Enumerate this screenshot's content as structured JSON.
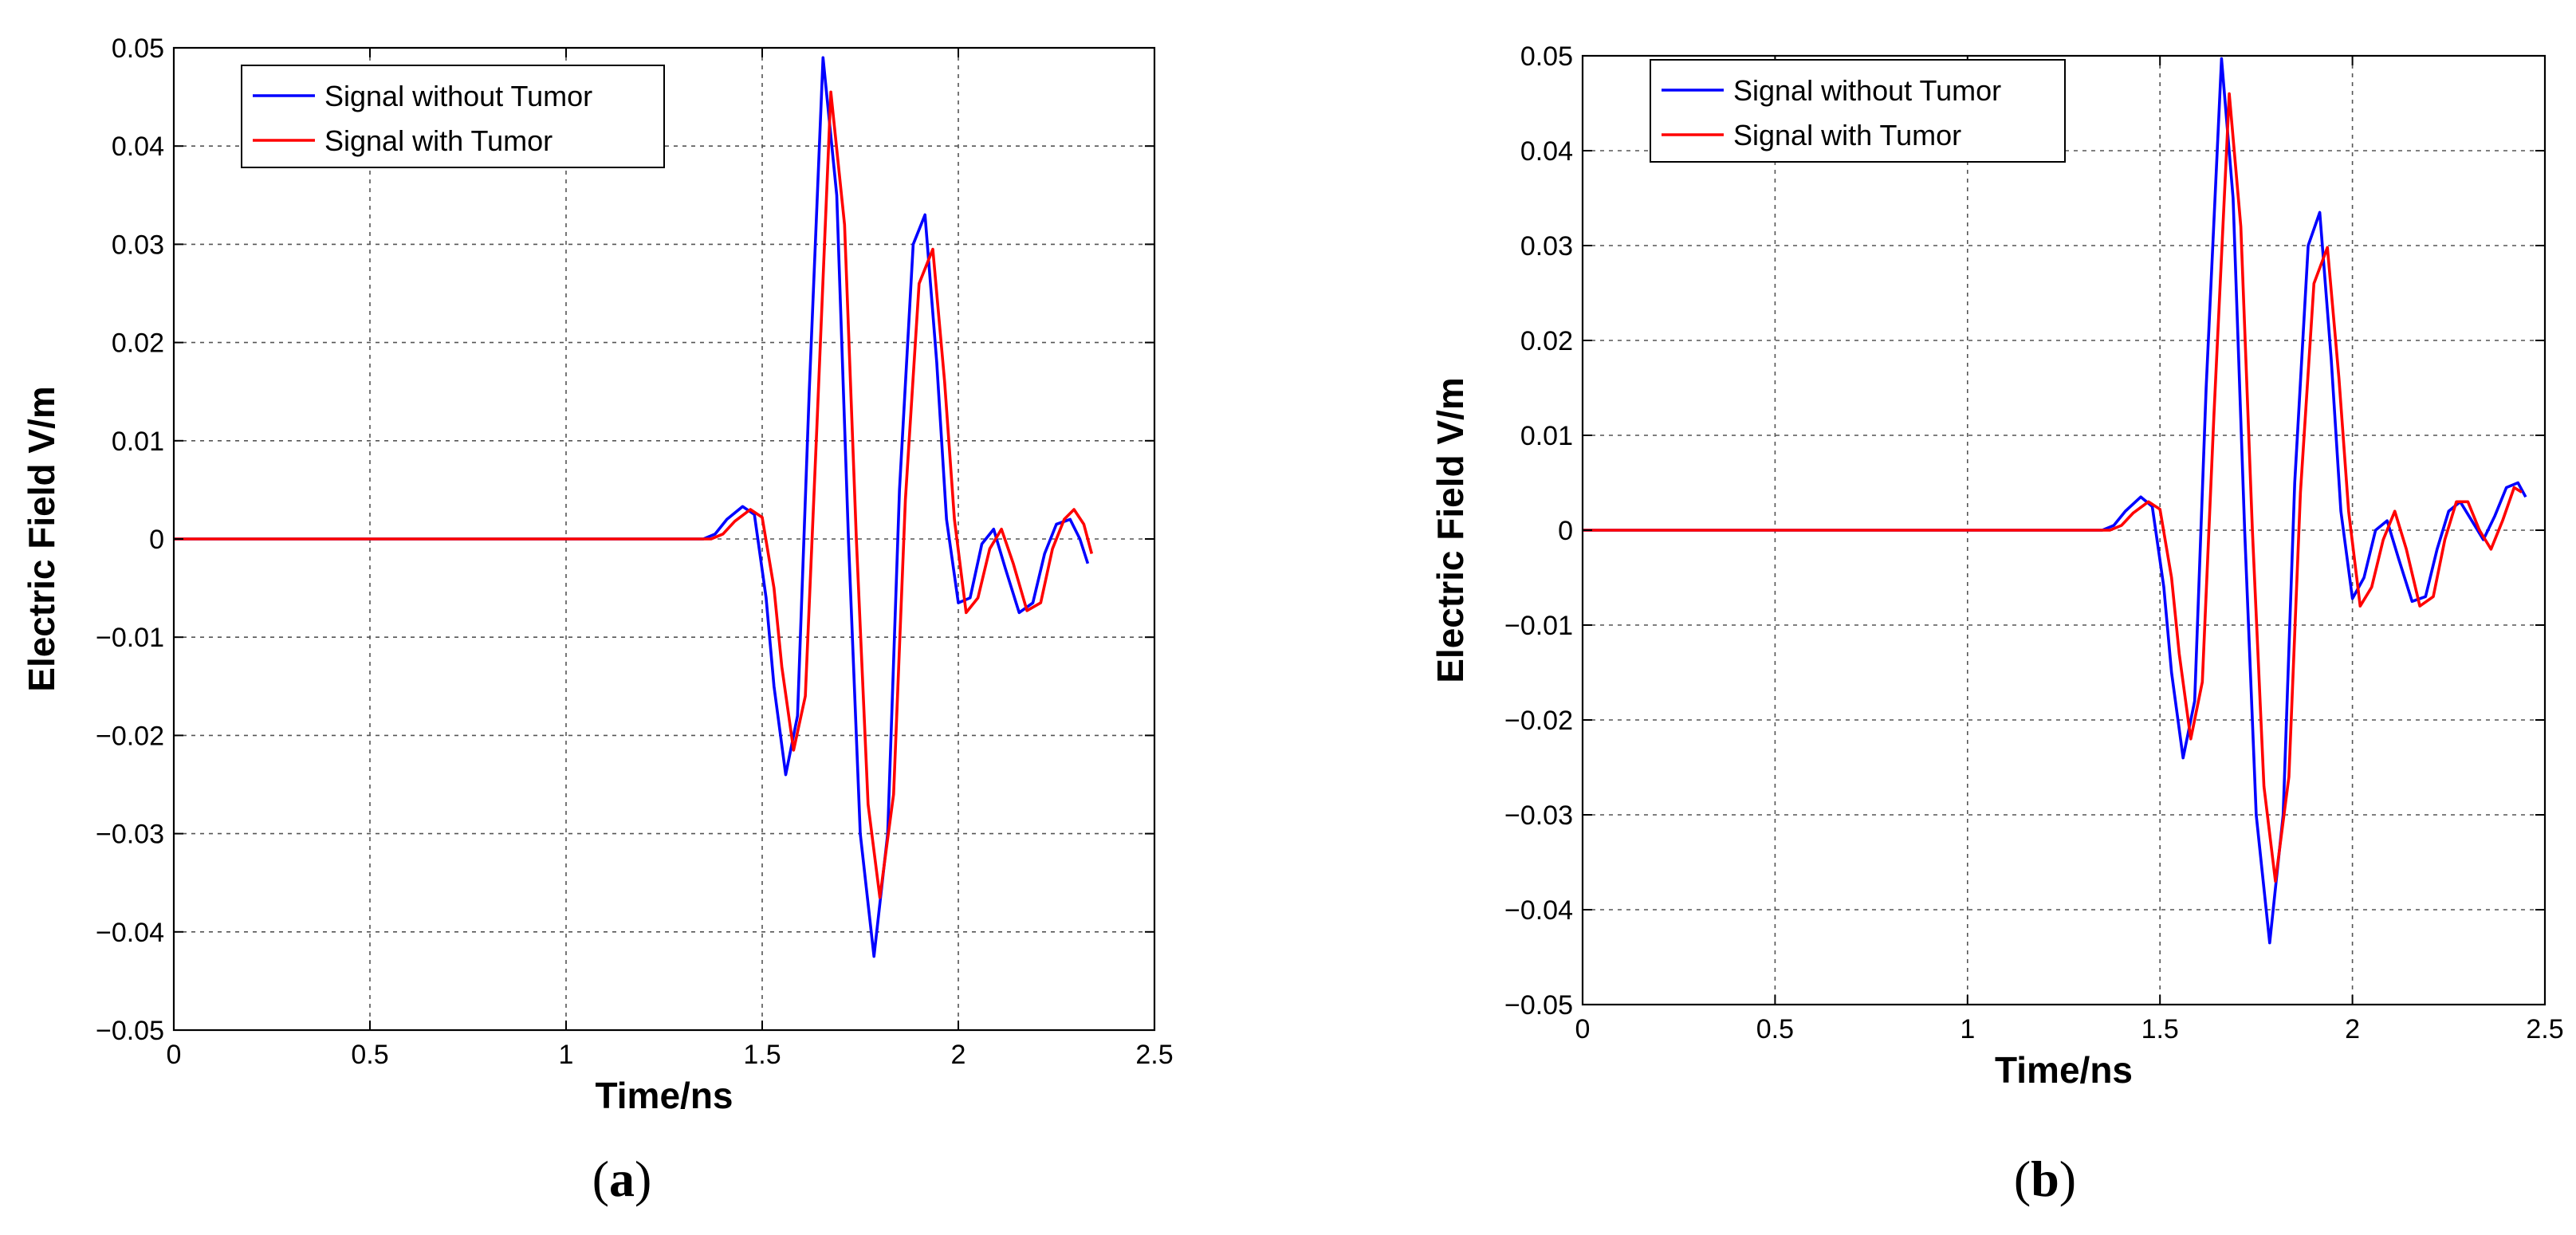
{
  "chart_data": [
    {
      "type": "line",
      "caption_letter": "a",
      "xlabel": "Time/ns",
      "ylabel": "Electric Field V/m",
      "xlim": [
        0,
        2.5
      ],
      "ylim": [
        -0.05,
        0.05
      ],
      "xticks": [
        0,
        0.5,
        1,
        1.5,
        2,
        2.5
      ],
      "yticks": [
        -0.05,
        -0.04,
        -0.03,
        -0.02,
        -0.01,
        0,
        0.01,
        0.02,
        0.03,
        0.04,
        0.05
      ],
      "xtick_labels": [
        "0",
        "0.5",
        "1",
        "1.5",
        "2",
        "2.5"
      ],
      "ytick_labels": [
        "−0.05",
        "−0.04",
        "−0.03",
        "−0.02",
        "−0.01",
        "0",
        "0.01",
        "0.02",
        "0.03",
        "0.04",
        "0.05"
      ],
      "grid": true,
      "legend_position": "top-left",
      "series": [
        {
          "name": "Signal without Tumor",
          "color": "#0000ff",
          "x": [
            0,
            0.5,
            1.0,
            1.35,
            1.38,
            1.41,
            1.45,
            1.48,
            1.51,
            1.53,
            1.56,
            1.59,
            1.62,
            1.655,
            1.69,
            1.72,
            1.75,
            1.785,
            1.82,
            1.85,
            1.885,
            1.915,
            1.945,
            1.97,
            2.0,
            2.03,
            2.06,
            2.09,
            2.12,
            2.155,
            2.19,
            2.22,
            2.25,
            2.285,
            2.31,
            2.33
          ],
          "y": [
            0,
            0,
            0,
            0,
            0.0005,
            0.002,
            0.0033,
            0.0025,
            -0.006,
            -0.015,
            -0.024,
            -0.018,
            0.015,
            0.049,
            0.035,
            0.0,
            -0.03,
            -0.0425,
            -0.03,
            0.005,
            0.03,
            0.033,
            0.018,
            0.002,
            -0.0065,
            -0.006,
            -0.0005,
            0.001,
            -0.003,
            -0.0075,
            -0.0065,
            -0.0015,
            0.0015,
            0.002,
            0.0,
            -0.0025
          ]
        },
        {
          "name": "Signal with Tumor",
          "color": "#ff0000",
          "x": [
            0,
            0.5,
            1.0,
            1.37,
            1.4,
            1.43,
            1.47,
            1.5,
            1.53,
            1.55,
            1.58,
            1.61,
            1.64,
            1.675,
            1.71,
            1.74,
            1.77,
            1.8,
            1.835,
            1.865,
            1.9,
            1.935,
            1.965,
            1.99,
            2.02,
            2.05,
            2.08,
            2.11,
            2.14,
            2.175,
            2.21,
            2.24,
            2.27,
            2.295,
            2.32,
            2.34
          ],
          "y": [
            0,
            0,
            0,
            0,
            0.0005,
            0.0018,
            0.003,
            0.0022,
            -0.005,
            -0.013,
            -0.0215,
            -0.016,
            0.012,
            0.0455,
            0.032,
            0.0,
            -0.027,
            -0.0365,
            -0.026,
            0.004,
            0.026,
            0.0295,
            0.016,
            0.002,
            -0.0075,
            -0.006,
            -0.001,
            0.001,
            -0.0025,
            -0.0073,
            -0.0065,
            -0.001,
            0.002,
            0.003,
            0.0015,
            -0.0015
          ]
        }
      ]
    },
    {
      "type": "line",
      "caption_letter": "b",
      "xlabel": "Time/ns",
      "ylabel": "Electric Field V/m",
      "xlim": [
        0,
        2.5
      ],
      "ylim": [
        -0.05,
        0.05
      ],
      "xticks": [
        0,
        0.5,
        1,
        1.5,
        2,
        2.5
      ],
      "yticks": [
        -0.05,
        -0.04,
        -0.03,
        -0.02,
        -0.01,
        0,
        0.01,
        0.02,
        0.03,
        0.04,
        0.05
      ],
      "xtick_labels": [
        "0",
        "0.5",
        "1",
        "1.5",
        "2",
        "2.5"
      ],
      "ytick_labels": [
        "−0.05",
        "−0.04",
        "−0.03",
        "−0.02",
        "−0.01",
        "0",
        "0.01",
        "0.02",
        "0.03",
        "0.04",
        "0.05"
      ],
      "grid": true,
      "legend_position": "top-left",
      "series": [
        {
          "name": "Signal without Tumor",
          "color": "#0000ff",
          "x": [
            0,
            0.5,
            1.0,
            1.35,
            1.38,
            1.41,
            1.45,
            1.48,
            1.51,
            1.53,
            1.56,
            1.59,
            1.62,
            1.66,
            1.69,
            1.72,
            1.75,
            1.785,
            1.82,
            1.85,
            1.885,
            1.915,
            1.945,
            1.97,
            2.0,
            2.03,
            2.06,
            2.09,
            2.12,
            2.155,
            2.19,
            2.22,
            2.25,
            2.28,
            2.31,
            2.34,
            2.37,
            2.4,
            2.43,
            2.45
          ],
          "y": [
            0,
            0,
            0,
            0,
            0.0005,
            0.002,
            0.0035,
            0.0025,
            -0.006,
            -0.015,
            -0.024,
            -0.018,
            0.015,
            0.0497,
            0.035,
            0.0,
            -0.03,
            -0.0435,
            -0.03,
            0.005,
            0.03,
            0.0335,
            0.018,
            0.002,
            -0.0072,
            -0.005,
            0.0,
            0.001,
            -0.003,
            -0.0075,
            -0.007,
            -0.002,
            0.002,
            0.003,
            0.001,
            -0.001,
            0.0015,
            0.0045,
            0.005,
            0.0035
          ]
        },
        {
          "name": "Signal with Tumor",
          "color": "#ff0000",
          "x": [
            0,
            0.5,
            1.0,
            1.37,
            1.4,
            1.43,
            1.47,
            1.5,
            1.53,
            1.55,
            1.58,
            1.61,
            1.64,
            1.68,
            1.71,
            1.74,
            1.77,
            1.8,
            1.835,
            1.865,
            1.9,
            1.935,
            1.965,
            1.99,
            2.02,
            2.05,
            2.08,
            2.11,
            2.14,
            2.175,
            2.21,
            2.24,
            2.27,
            2.3,
            2.33,
            2.36,
            2.39,
            2.42,
            2.44
          ],
          "y": [
            0,
            0,
            0,
            0,
            0.0005,
            0.0018,
            0.003,
            0.0022,
            -0.005,
            -0.013,
            -0.022,
            -0.016,
            0.012,
            0.046,
            0.032,
            0.0,
            -0.027,
            -0.037,
            -0.026,
            0.004,
            0.026,
            0.0298,
            0.016,
            0.002,
            -0.008,
            -0.006,
            -0.001,
            0.002,
            -0.002,
            -0.008,
            -0.007,
            -0.001,
            0.003,
            0.003,
            0.0,
            -0.002,
            0.001,
            0.0045,
            0.004
          ]
        }
      ]
    }
  ]
}
